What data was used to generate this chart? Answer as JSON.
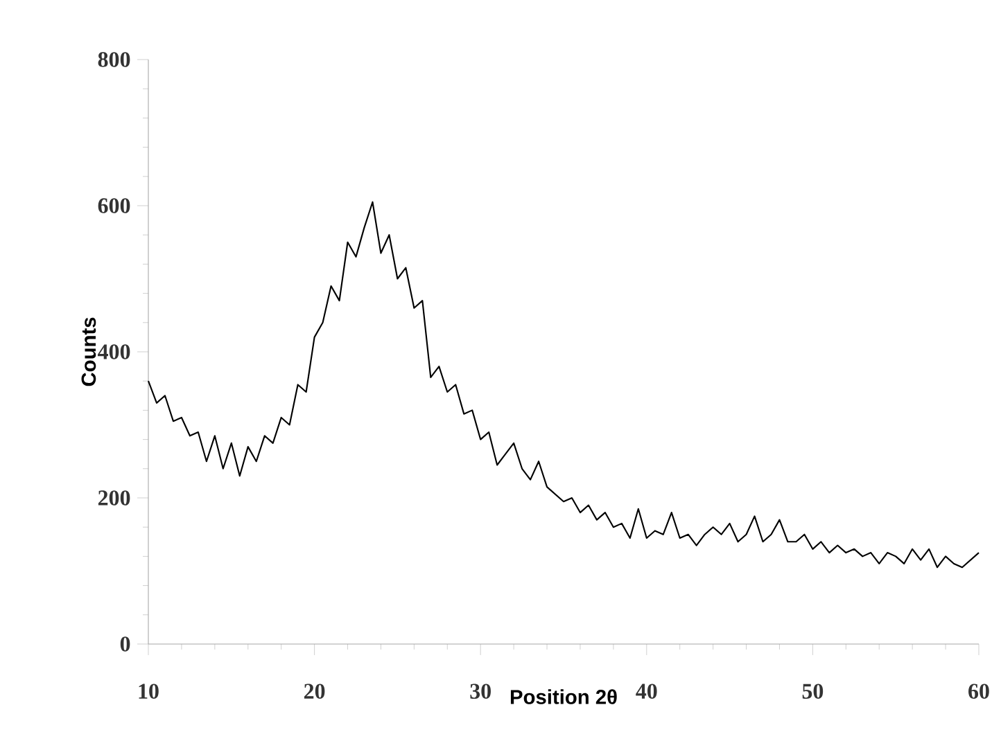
{
  "chart_data": {
    "type": "line",
    "xlabel": "Position 2θ",
    "ylabel": "Counts",
    "xlim": [
      10,
      60
    ],
    "ylim": [
      0,
      800
    ],
    "xticks": [
      10,
      20,
      30,
      40,
      50,
      60
    ],
    "yticks": [
      0,
      200,
      400,
      600,
      800
    ],
    "grid": false,
    "marker": "none",
    "line_style": "solid",
    "series": [
      {
        "color": "#000000",
        "x": [
          10,
          10.5,
          11,
          11.5,
          12,
          12.5,
          13,
          13.5,
          14,
          14.5,
          15,
          15.5,
          16,
          16.5,
          17,
          17.5,
          18,
          18.5,
          19,
          19.5,
          20,
          20.5,
          21,
          21.5,
          22,
          22.5,
          23,
          23.5,
          24,
          24.5,
          25,
          25.5,
          26,
          26.5,
          27,
          27.5,
          28,
          28.5,
          29,
          29.5,
          30,
          30.5,
          31,
          31.5,
          32,
          32.5,
          33,
          33.5,
          34,
          34.5,
          35,
          35.5,
          36,
          36.5,
          37,
          37.5,
          38,
          38.5,
          39,
          39.5,
          40,
          40.5,
          41,
          41.5,
          42,
          42.5,
          43,
          43.5,
          44,
          44.5,
          45,
          45.5,
          46,
          46.5,
          47,
          47.5,
          48,
          48.5,
          49,
          49.5,
          50,
          50.5,
          51,
          51.5,
          52,
          52.5,
          53,
          53.5,
          54,
          54.5,
          55,
          55.5,
          56,
          56.5,
          57,
          57.5,
          58,
          58.5,
          59,
          59.5,
          60
        ],
        "values": [
          360,
          330,
          340,
          305,
          310,
          285,
          290,
          250,
          285,
          240,
          275,
          230,
          270,
          250,
          285,
          275,
          310,
          300,
          355,
          345,
          420,
          440,
          490,
          470,
          550,
          530,
          570,
          605,
          535,
          560,
          500,
          515,
          460,
          470,
          365,
          380,
          345,
          355,
          315,
          320,
          280,
          290,
          245,
          260,
          275,
          240,
          225,
          250,
          215,
          205,
          195,
          200,
          180,
          190,
          170,
          180,
          160,
          165,
          145,
          185,
          145,
          155,
          150,
          180,
          145,
          150,
          135,
          150,
          160,
          150,
          165,
          140,
          150,
          175,
          140,
          150,
          170,
          140,
          140,
          150,
          130,
          140,
          125,
          135,
          125,
          130,
          120,
          125,
          110,
          125,
          120,
          110,
          130,
          115,
          130,
          105,
          120,
          110,
          105,
          115,
          125
        ]
      }
    ]
  }
}
